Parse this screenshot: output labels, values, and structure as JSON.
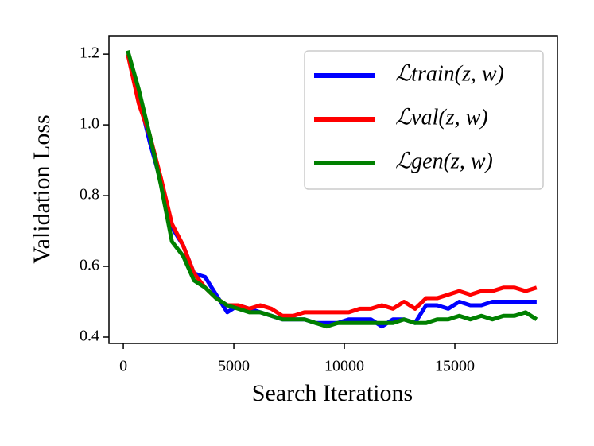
{
  "chart_data": {
    "type": "line",
    "xlabel": "Search Iterations",
    "ylabel": "Validation Loss",
    "x": [
      200,
      700,
      1200,
      1700,
      2200,
      2700,
      3200,
      3700,
      4200,
      4700,
      5200,
      5700,
      6200,
      6700,
      7200,
      7700,
      8200,
      8700,
      9200,
      9700,
      10200,
      10700,
      11200,
      11700,
      12200,
      12700,
      13200,
      13700,
      14200,
      14700,
      15200,
      15700,
      16200,
      16700,
      17200,
      17700,
      18200,
      18700
    ],
    "series": [
      {
        "name": "ℒtrain(z, w)",
        "color": "#0000ff",
        "values": [
          1.2,
          1.08,
          0.95,
          0.84,
          0.71,
          0.66,
          0.58,
          0.57,
          0.52,
          0.47,
          0.49,
          0.48,
          0.47,
          0.46,
          0.45,
          0.45,
          0.45,
          0.44,
          0.44,
          0.44,
          0.45,
          0.45,
          0.45,
          0.43,
          0.45,
          0.45,
          0.44,
          0.49,
          0.49,
          0.48,
          0.5,
          0.49,
          0.49,
          0.5,
          0.5,
          0.5,
          0.5,
          0.5
        ]
      },
      {
        "name": "ℒval(z, w)",
        "color": "#ff0000",
        "values": [
          1.2,
          1.06,
          0.97,
          0.85,
          0.72,
          0.66,
          0.58,
          0.54,
          0.51,
          0.49,
          0.49,
          0.48,
          0.49,
          0.48,
          0.46,
          0.46,
          0.47,
          0.47,
          0.47,
          0.47,
          0.47,
          0.48,
          0.48,
          0.49,
          0.48,
          0.5,
          0.48,
          0.51,
          0.51,
          0.52,
          0.53,
          0.52,
          0.53,
          0.53,
          0.54,
          0.54,
          0.53,
          0.54
        ]
      },
      {
        "name": "ℒgen(z, w)",
        "color": "#008000",
        "values": [
          1.21,
          1.1,
          0.97,
          0.83,
          0.67,
          0.63,
          0.56,
          0.54,
          0.51,
          0.49,
          0.48,
          0.47,
          0.47,
          0.46,
          0.45,
          0.45,
          0.45,
          0.44,
          0.43,
          0.44,
          0.44,
          0.44,
          0.44,
          0.44,
          0.44,
          0.45,
          0.44,
          0.44,
          0.45,
          0.45,
          0.46,
          0.45,
          0.46,
          0.45,
          0.46,
          0.46,
          0.47,
          0.45
        ]
      }
    ],
    "xlim": [
      -650,
      19640
    ],
    "ylim": [
      0.382,
      1.252
    ],
    "xticks": [
      0,
      5000,
      10000,
      15000
    ],
    "yticks": [
      0.4,
      0.6,
      0.8,
      {
        "value": 1,
        "label": "1.0"
      },
      1.2
    ],
    "legend": "upper right"
  }
}
